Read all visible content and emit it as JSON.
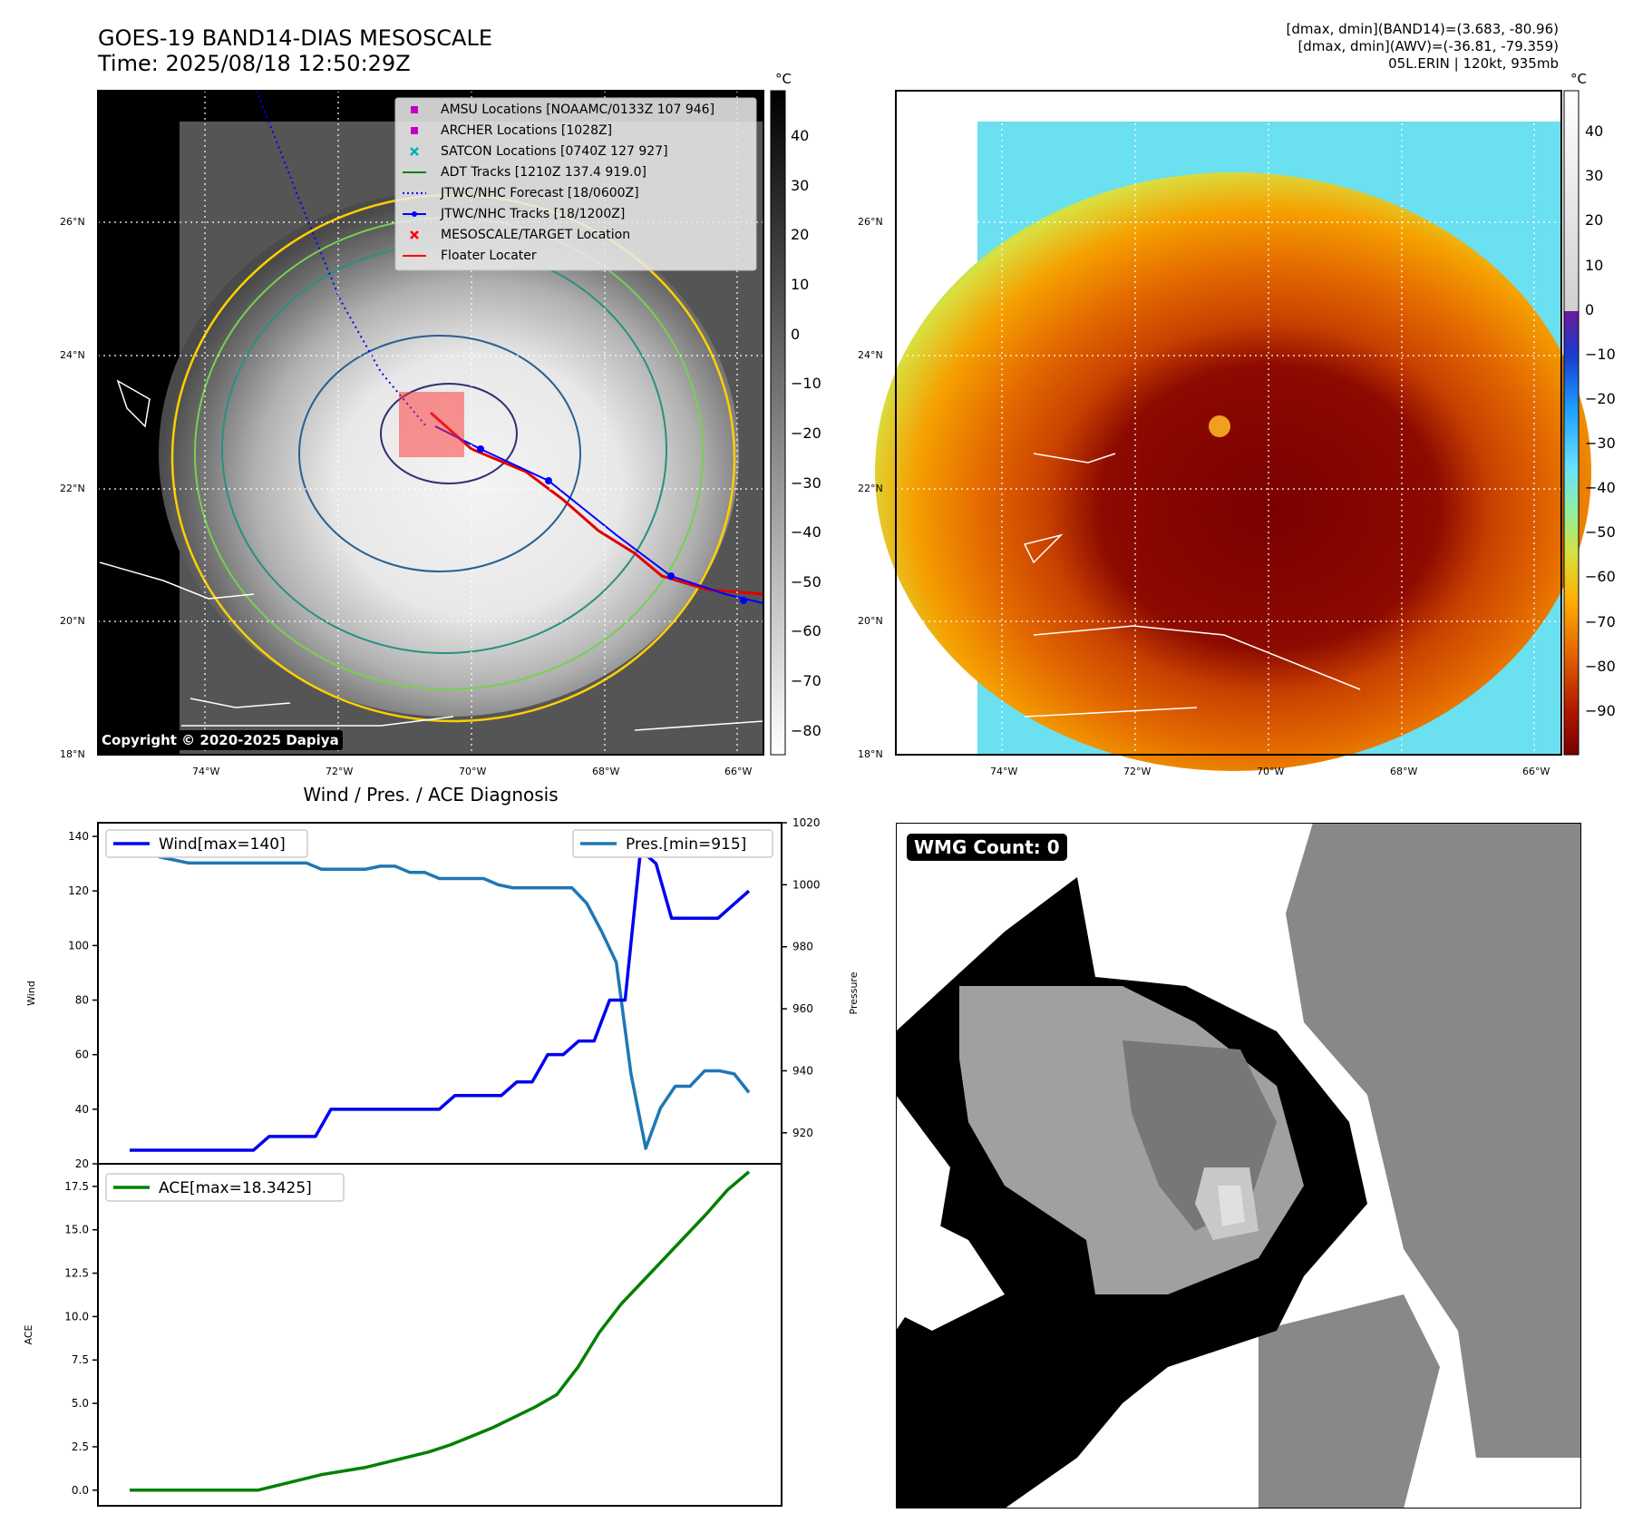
{
  "header": {
    "title_line1": "GOES-19 BAND14-DIAS MESOSCALE",
    "title_line2": "Time: 2025/08/18 12:50:29Z",
    "info_line1": "[dmax, dmin](BAND14)=(3.683, -80.96)",
    "info_line2": "[dmax, dmin](AWV)=(-36.81, -79.359)",
    "info_line3": "05L.ERIN | 120kt, 935mb"
  },
  "map_panels": {
    "lat_labels": [
      "26°N",
      "24°N",
      "22°N",
      "20°N",
      "18°N"
    ],
    "lon_labels": [
      "74°W",
      "72°W",
      "70°W",
      "68°W",
      "66°W"
    ],
    "unit_label": "°C",
    "copyright": "Copyright © 2020-2025 Dapiya",
    "legend": [
      {
        "label": "AMSU Locations [NOAAMC/0133Z 107 946]",
        "marker": "square",
        "color": "#c000c0"
      },
      {
        "label": "ARCHER Locations [1028Z]",
        "marker": "square",
        "color": "#c000c0"
      },
      {
        "label": "SATCON Locations [0740Z 127 927]",
        "marker": "x",
        "color": "#00b0b0"
      },
      {
        "label": "ADT Tracks [1210Z 137.4 919.0]",
        "marker": "line",
        "color": "#008000"
      },
      {
        "label": "JTWC/NHC Forecast [18/0600Z]",
        "marker": "dotted",
        "color": "#0000ff"
      },
      {
        "label": "JTWC/NHC Tracks [18/1200Z]",
        "marker": "line-dot",
        "color": "#0000ff"
      },
      {
        "label": "MESOSCALE/TARGET Location",
        "marker": "x",
        "color": "#ff0000"
      },
      {
        "label": "Floater Locater",
        "marker": "line",
        "color": "#ff0000"
      }
    ],
    "cbar1_ticks": [
      "40",
      "30",
      "20",
      "10",
      "0",
      "−10",
      "−20",
      "−30",
      "−40",
      "−50",
      "−60",
      "−70",
      "−80"
    ],
    "cbar2_ticks": [
      "40",
      "30",
      "20",
      "10",
      "0",
      "−10",
      "−20",
      "−30",
      "−40",
      "−50",
      "−60",
      "−70",
      "−80",
      "−90"
    ]
  },
  "diagnosis": {
    "title": "Wind / Pres. / ACE Diagnosis",
    "wind_legend": "Wind[max=140]",
    "pres_legend": "Pres.[min=915]",
    "ace_legend": "ACE[max=18.3425]",
    "wind_ylabel": "Wind",
    "pres_ylabel": "Pressure",
    "ace_ylabel": "ACE",
    "wind_ticks": [
      "140",
      "120",
      "100",
      "80",
      "60",
      "40",
      "20"
    ],
    "pres_ticks": [
      "1020",
      "1000",
      "980",
      "960",
      "940",
      "920"
    ],
    "ace_ticks": [
      "17.5",
      "15.0",
      "12.5",
      "10.0",
      "7.5",
      "5.0",
      "2.5",
      "0.0"
    ]
  },
  "wmg": {
    "label": "WMG Count: 0"
  },
  "colors": {
    "wind": "#0000ee",
    "pressure": "#1f77b4",
    "ace": "#008000"
  },
  "chart_data": [
    {
      "type": "line",
      "title": "Wind / Pres. / ACE Diagnosis",
      "ylabel": "Wind",
      "ylim": [
        20,
        145
      ],
      "series": [
        {
          "name": "Wind[max=140]",
          "values": [
            25,
            25,
            25,
            25,
            25,
            25,
            25,
            25,
            25,
            30,
            30,
            30,
            30,
            40,
            40,
            40,
            40,
            40,
            40,
            40,
            40,
            45,
            45,
            45,
            45,
            50,
            50,
            60,
            60,
            65,
            65,
            80,
            80,
            135,
            130,
            110,
            110,
            110,
            110,
            115,
            120
          ]
        }
      ]
    },
    {
      "type": "line",
      "ylabel": "Pressure",
      "ylim": [
        910,
        1020
      ],
      "series": [
        {
          "name": "Pres.[min=915]",
          "values": [
            1015,
            1015,
            1009,
            1008,
            1007,
            1007,
            1007,
            1007,
            1007,
            1007,
            1007,
            1007,
            1007,
            1005,
            1005,
            1005,
            1005,
            1006,
            1006,
            1004,
            1004,
            1002,
            1002,
            1002,
            1002,
            1000,
            999,
            999,
            999,
            999,
            999,
            994,
            985,
            975,
            939,
            915,
            928,
            935,
            935,
            940,
            940,
            939,
            933
          ]
        }
      ]
    },
    {
      "type": "line",
      "ylabel": "ACE",
      "ylim": [
        -0.9,
        18.8
      ],
      "series": [
        {
          "name": "ACE[max=18.3425]",
          "values": [
            0,
            0,
            0,
            0,
            0,
            0,
            0,
            0.3,
            0.6,
            0.9,
            1.1,
            1.3,
            1.6,
            1.9,
            2.2,
            2.6,
            3.1,
            3.6,
            4.2,
            4.8,
            5.5,
            7.1,
            9.1,
            10.7,
            12.0,
            13.3,
            14.6,
            15.9,
            17.3,
            18.34
          ]
        }
      ]
    }
  ]
}
